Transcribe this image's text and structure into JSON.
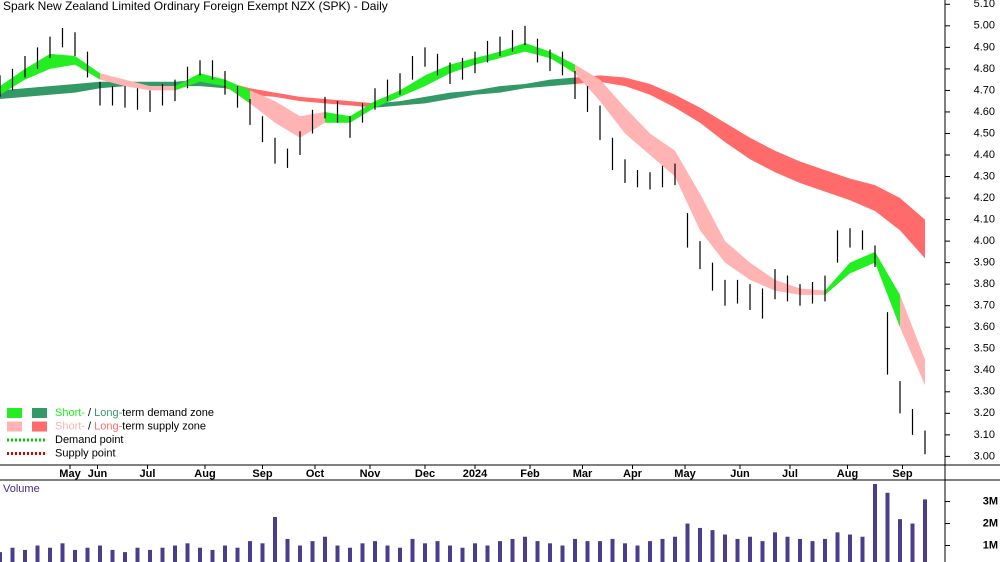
{
  "chart_data": [
    {
      "type": "ohlc",
      "title": "Spark New Zealand Limited Ordinary Foreign Exempt NZX (SPK) - Daily",
      "xlim": [
        0,
        378
      ],
      "ylim": [
        2.96,
        5.12
      ],
      "xticks": [
        {
          "value": 28,
          "label": "May"
        },
        {
          "value": 39,
          "label": "Jun"
        },
        {
          "value": 59,
          "label": "Jul"
        },
        {
          "value": 82,
          "label": "Aug"
        },
        {
          "value": 105,
          "label": "Sep"
        },
        {
          "value": 126,
          "label": "Oct"
        },
        {
          "value": 148,
          "label": "Nov"
        },
        {
          "value": 170,
          "label": "Dec"
        },
        {
          "value": 190,
          "label": "2024"
        },
        {
          "value": 212,
          "label": "Feb"
        },
        {
          "value": 233,
          "label": "Mar"
        },
        {
          "value": 253,
          "label": "Apr"
        },
        {
          "value": 274,
          "label": "May"
        },
        {
          "value": 296,
          "label": "Jun"
        },
        {
          "value": 316,
          "label": "Jul"
        },
        {
          "value": 339,
          "label": "Aug"
        },
        {
          "value": 361,
          "label": "Sep"
        }
      ],
      "yticks": [
        {
          "value": 3.0,
          "label": "3.00"
        },
        {
          "value": 3.1,
          "label": "3.10"
        },
        {
          "value": 3.2,
          "label": "3.20"
        },
        {
          "value": 3.3,
          "label": "3.30"
        },
        {
          "value": 3.4,
          "label": "3.40"
        },
        {
          "value": 3.5,
          "label": "3.50"
        },
        {
          "value": 3.6,
          "label": "3.60"
        },
        {
          "value": 3.7,
          "label": "3.70"
        },
        {
          "value": 3.8,
          "label": "3.80"
        },
        {
          "value": 3.9,
          "label": "3.90"
        },
        {
          "value": 4.0,
          "label": "4.00"
        },
        {
          "value": 4.1,
          "label": "4.10"
        },
        {
          "value": 4.2,
          "label": "4.20"
        },
        {
          "value": 4.3,
          "label": "4.30"
        },
        {
          "value": 4.4,
          "label": "4.40"
        },
        {
          "value": 4.5,
          "label": "4.50"
        },
        {
          "value": 4.6,
          "label": "4.60"
        },
        {
          "value": 4.7,
          "label": "4.70"
        },
        {
          "value": 4.8,
          "label": "4.80"
        },
        {
          "value": 4.9,
          "label": "4.90"
        },
        {
          "value": 5.0,
          "label": "5.00"
        },
        {
          "value": 5.1,
          "label": "5.10"
        }
      ],
      "color": "#000000",
      "x": [
        0,
        5,
        10,
        15,
        20,
        25,
        30,
        35,
        40,
        45,
        50,
        55,
        60,
        65,
        70,
        75,
        80,
        85,
        90,
        95,
        100,
        105,
        110,
        115,
        120,
        125,
        130,
        135,
        140,
        145,
        150,
        155,
        160,
        165,
        170,
        175,
        180,
        185,
        190,
        195,
        200,
        205,
        210,
        215,
        220,
        225,
        230,
        235,
        240,
        245,
        250,
        255,
        260,
        265,
        270,
        275,
        280,
        285,
        290,
        295,
        300,
        305,
        310,
        315,
        320,
        325,
        330,
        335,
        340,
        345,
        350,
        355,
        360,
        365,
        370
      ],
      "high": [
        4.77,
        4.8,
        4.86,
        4.9,
        4.95,
        4.99,
        4.97,
        4.88,
        4.74,
        4.72,
        4.72,
        4.71,
        4.7,
        4.73,
        4.75,
        4.81,
        4.84,
        4.84,
        4.79,
        4.72,
        4.66,
        4.58,
        4.48,
        4.43,
        4.51,
        4.61,
        4.67,
        4.65,
        4.58,
        4.64,
        4.71,
        4.75,
        4.78,
        4.86,
        4.9,
        4.87,
        4.83,
        4.85,
        4.88,
        4.93,
        4.95,
        4.98,
        5.0,
        4.94,
        4.89,
        4.88,
        4.79,
        4.72,
        4.63,
        4.48,
        4.38,
        4.33,
        4.32,
        4.35,
        4.36,
        4.13,
        4.0,
        3.9,
        3.82,
        3.82,
        3.8,
        3.78,
        3.87,
        3.84,
        3.8,
        3.81,
        3.84,
        4.05,
        4.06,
        4.05,
        3.98,
        3.67,
        3.35,
        3.22,
        3.12
      ],
      "low": [
        4.67,
        4.7,
        4.76,
        4.8,
        4.85,
        4.9,
        4.86,
        4.76,
        4.63,
        4.63,
        4.62,
        4.61,
        4.6,
        4.63,
        4.65,
        4.71,
        4.77,
        4.75,
        4.68,
        4.62,
        4.54,
        4.46,
        4.36,
        4.34,
        4.4,
        4.5,
        4.57,
        4.55,
        4.48,
        4.55,
        4.61,
        4.65,
        4.68,
        4.75,
        4.81,
        4.77,
        4.73,
        4.75,
        4.78,
        4.83,
        4.86,
        4.88,
        4.91,
        4.83,
        4.79,
        4.77,
        4.66,
        4.6,
        4.47,
        4.33,
        4.27,
        4.25,
        4.24,
        4.25,
        4.26,
        3.97,
        3.87,
        3.77,
        3.7,
        3.71,
        3.68,
        3.64,
        3.73,
        3.72,
        3.7,
        3.71,
        3.72,
        3.9,
        3.97,
        3.96,
        3.88,
        3.38,
        3.2,
        3.1,
        3.01
      ],
      "zone_x": [
        0,
        10,
        20,
        30,
        40,
        50,
        60,
        70,
        80,
        90,
        100,
        110,
        120,
        130,
        140,
        150,
        160,
        170,
        180,
        190,
        200,
        210,
        220,
        230,
        240,
        250,
        260,
        270,
        280,
        290,
        300,
        310,
        320,
        330,
        340,
        350,
        360,
        370
      ],
      "zones": [
        {
          "color": "#339966",
          "upper": [
            4.7,
            4.71,
            4.72,
            4.73,
            4.74,
            4.74,
            4.74,
            4.74,
            4.75,
            4.74,
            null,
            null,
            null,
            null,
            null,
            4.64,
            4.65,
            4.67,
            4.69,
            4.7,
            4.72,
            4.73,
            4.75,
            4.76,
            null,
            null,
            null,
            null,
            null,
            null,
            null,
            null,
            null,
            null,
            null,
            null,
            null,
            null
          ],
          "lower": [
            4.66,
            4.67,
            4.68,
            4.69,
            4.71,
            4.72,
            4.72,
            4.72,
            4.72,
            4.71,
            null,
            null,
            null,
            null,
            null,
            4.62,
            4.63,
            4.64,
            4.66,
            4.68,
            4.69,
            4.71,
            4.72,
            4.73,
            null,
            null,
            null,
            null,
            null,
            null,
            null,
            null,
            null,
            null,
            null,
            null,
            null,
            null
          ]
        },
        {
          "color": "#ff6b6b",
          "upper": [
            null,
            null,
            null,
            null,
            null,
            null,
            null,
            null,
            null,
            4.74,
            4.71,
            4.69,
            4.67,
            4.66,
            4.65,
            4.64,
            null,
            null,
            null,
            null,
            null,
            null,
            null,
            4.76,
            4.77,
            4.76,
            4.73,
            4.68,
            4.62,
            4.55,
            4.48,
            4.42,
            4.37,
            4.33,
            4.29,
            4.26,
            4.2,
            4.1
          ],
          "lower": [
            null,
            null,
            null,
            null,
            null,
            null,
            null,
            null,
            null,
            4.71,
            4.68,
            4.67,
            4.65,
            4.64,
            4.63,
            4.62,
            null,
            null,
            null,
            null,
            null,
            null,
            null,
            4.73,
            4.74,
            4.72,
            4.68,
            4.62,
            4.55,
            4.46,
            4.38,
            4.32,
            4.27,
            4.23,
            4.19,
            4.14,
            4.05,
            3.92
          ]
        },
        {
          "color": "#22ee22",
          "upper": [
            4.72,
            4.8,
            4.87,
            4.86,
            4.78,
            null,
            null,
            4.72,
            4.78,
            4.75,
            4.7,
            null,
            null,
            4.6,
            4.58,
            4.65,
            4.7,
            4.77,
            4.82,
            4.85,
            4.88,
            4.92,
            4.88,
            4.82,
            null,
            null,
            null,
            null,
            null,
            null,
            null,
            null,
            null,
            3.77,
            3.9,
            3.95,
            3.75,
            null
          ],
          "lower": [
            4.68,
            4.75,
            4.8,
            4.82,
            4.75,
            null,
            null,
            4.7,
            4.74,
            4.72,
            4.64,
            null,
            null,
            4.55,
            4.55,
            4.62,
            4.67,
            4.72,
            4.78,
            4.82,
            4.85,
            4.88,
            4.85,
            4.78,
            null,
            null,
            null,
            null,
            null,
            null,
            null,
            null,
            null,
            3.75,
            3.85,
            3.9,
            3.6,
            null
          ]
        },
        {
          "color": "#ffb3b3",
          "upper": [
            null,
            null,
            null,
            null,
            4.78,
            4.75,
            4.72,
            4.72,
            null,
            null,
            4.7,
            4.65,
            4.58,
            4.6,
            null,
            null,
            null,
            null,
            null,
            null,
            null,
            null,
            null,
            4.82,
            4.75,
            4.62,
            4.5,
            4.42,
            4.22,
            4.0,
            3.9,
            3.82,
            3.78,
            3.77,
            null,
            null,
            3.75,
            3.45
          ],
          "lower": [
            null,
            null,
            null,
            null,
            4.75,
            4.72,
            4.7,
            4.7,
            null,
            null,
            4.64,
            4.55,
            4.48,
            4.55,
            null,
            null,
            null,
            null,
            null,
            null,
            null,
            null,
            null,
            4.78,
            4.65,
            4.5,
            4.4,
            4.3,
            4.05,
            3.9,
            3.82,
            3.77,
            3.75,
            3.75,
            null,
            null,
            3.6,
            3.33
          ]
        }
      ],
      "legend": [
        {
          "swatches": [
            "#22ee22",
            "#339966"
          ],
          "parts": [
            "Short-",
            " / ",
            "Long-",
            "term demand zone"
          ]
        },
        {
          "swatches": [
            "#ffb3b3",
            "#ff6b6b"
          ],
          "parts": [
            "Short-",
            " / ",
            "Long-",
            "term supply zone"
          ]
        },
        {
          "line": "#00cc00",
          "parts": [
            "Demand point"
          ]
        },
        {
          "line": "#dd0000",
          "parts": [
            "Supply point"
          ]
        }
      ]
    },
    {
      "type": "bar",
      "title": "Volume",
      "color": "#4b3c8c",
      "xlim": [
        0,
        378
      ],
      "ylim": [
        250000,
        3800000
      ],
      "yticks": [
        {
          "value": 1000000,
          "label": "1M"
        },
        {
          "value": 2000000,
          "label": "2M"
        },
        {
          "value": 3000000,
          "label": "3M"
        }
      ],
      "x": [
        0,
        5,
        10,
        15,
        20,
        25,
        30,
        35,
        40,
        45,
        50,
        55,
        60,
        65,
        70,
        75,
        80,
        85,
        90,
        95,
        100,
        105,
        110,
        115,
        120,
        125,
        130,
        135,
        140,
        145,
        150,
        155,
        160,
        165,
        170,
        175,
        180,
        185,
        190,
        195,
        200,
        205,
        210,
        215,
        220,
        225,
        230,
        235,
        240,
        245,
        250,
        255,
        260,
        265,
        270,
        275,
        280,
        285,
        290,
        295,
        300,
        305,
        310,
        315,
        320,
        325,
        330,
        335,
        340,
        345,
        350,
        355,
        360,
        365,
        370
      ],
      "values": [
        700000,
        900000,
        800000,
        1000000,
        900000,
        1100000,
        800000,
        900000,
        1000000,
        800000,
        700000,
        900000,
        800000,
        900000,
        1000000,
        1100000,
        900000,
        800000,
        1000000,
        900000,
        1200000,
        1100000,
        2300000,
        1300000,
        1000000,
        1200000,
        1400000,
        1000000,
        900000,
        1100000,
        1200000,
        1000000,
        900000,
        1300000,
        1100000,
        1200000,
        1000000,
        900000,
        1100000,
        1000000,
        1200000,
        1300000,
        1400000,
        1200000,
        1100000,
        1000000,
        1300000,
        1200000,
        1200000,
        1300000,
        1100000,
        1000000,
        1200000,
        1300000,
        1400000,
        2000000,
        1800000,
        1700000,
        1500000,
        1300000,
        1400000,
        1200000,
        1600000,
        1400000,
        1300000,
        1200000,
        1300000,
        1600000,
        1500000,
        1400000,
        3800000,
        3400000,
        2200000,
        2000000,
        3100000
      ]
    }
  ]
}
